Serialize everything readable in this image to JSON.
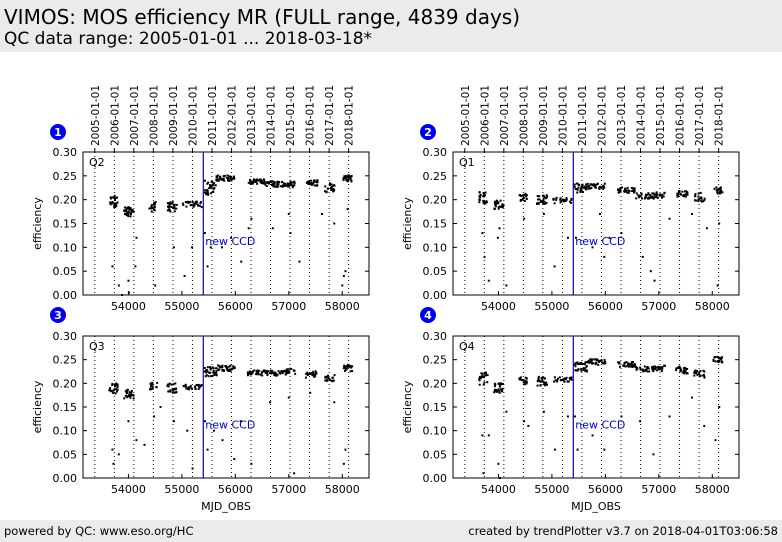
{
  "header": {
    "title": "VIMOS: MOS efficiency MR (FULL range, 4839 days)",
    "subtitle": "QC data range: 2005-01-01 ... 2018-03-18*"
  },
  "footer": {
    "left": "powered by QC: www.eso.org/HC",
    "right": "created by trendPlotter v3.7 on 2018-04-01T03:06:58"
  },
  "colors": {
    "points": "#000000",
    "event_line": "#0000cc",
    "event_text": "#0000cc",
    "badge": "#0000ee",
    "header_bg": "#ebebeb"
  },
  "chart_data": [
    {
      "type": "scatter",
      "panel_number": "1",
      "quadrant_label": "Q2",
      "xlabel": "",
      "ylabel": "efficiency",
      "xlim": [
        53150,
        58500
      ],
      "ylim": [
        0.0,
        0.3
      ],
      "x_ticks": [
        54000,
        55000,
        56000,
        57000,
        58000
      ],
      "y_ticks": [
        "0.00",
        "0.05",
        "0.10",
        "0.15",
        "0.20",
        "0.25",
        "0.30"
      ],
      "date_ticks": [
        {
          "label": "2005-01-01",
          "mjd": 53371
        },
        {
          "label": "2006-01-01",
          "mjd": 53736
        },
        {
          "label": "2007-01-01",
          "mjd": 54101
        },
        {
          "label": "2008-01-01",
          "mjd": 54466
        },
        {
          "label": "2009-01-01",
          "mjd": 54832
        },
        {
          "label": "2010-01-01",
          "mjd": 55197
        },
        {
          "label": "2011-01-01",
          "mjd": 55562
        },
        {
          "label": "2012-01-01",
          "mjd": 55927
        },
        {
          "label": "2013-01-01",
          "mjd": 56293
        },
        {
          "label": "2014-01-01",
          "mjd": 56658
        },
        {
          "label": "2015-01-01",
          "mjd": 57023
        },
        {
          "label": "2016-01-01",
          "mjd": 57388
        },
        {
          "label": "2017-01-01",
          "mjd": 57754
        },
        {
          "label": "2018-01-01",
          "mjd": 58119
        }
      ],
      "event": {
        "mjd": 55400,
        "label": "new CCD"
      },
      "segments": [
        {
          "x0": 53640,
          "x1": 53800,
          "y": 0.195,
          "spread": 0.013,
          "n": 26
        },
        {
          "x0": 53920,
          "x1": 54100,
          "y": 0.175,
          "spread": 0.01,
          "n": 30
        },
        {
          "x0": 54390,
          "x1": 54540,
          "y": 0.185,
          "spread": 0.01,
          "n": 16
        },
        {
          "x0": 54720,
          "x1": 54910,
          "y": 0.185,
          "spread": 0.01,
          "n": 26
        },
        {
          "x0": 55010,
          "x1": 55380,
          "y": 0.19,
          "spread": 0.006,
          "n": 28
        },
        {
          "x0": 55420,
          "x1": 55640,
          "y": 0.225,
          "spread": 0.015,
          "n": 32
        },
        {
          "x0": 55640,
          "x1": 55980,
          "y": 0.245,
          "spread": 0.006,
          "n": 40
        },
        {
          "x0": 56230,
          "x1": 56560,
          "y": 0.238,
          "spread": 0.005,
          "n": 38
        },
        {
          "x0": 56560,
          "x1": 56950,
          "y": 0.233,
          "spread": 0.006,
          "n": 40
        },
        {
          "x0": 56950,
          "x1": 57120,
          "y": 0.232,
          "spread": 0.006,
          "n": 20
        },
        {
          "x0": 57320,
          "x1": 57540,
          "y": 0.235,
          "spread": 0.006,
          "n": 26
        },
        {
          "x0": 57660,
          "x1": 57860,
          "y": 0.225,
          "spread": 0.01,
          "n": 22
        },
        {
          "x0": 58020,
          "x1": 58190,
          "y": 0.245,
          "spread": 0.007,
          "n": 24
        }
      ],
      "outliers": [
        [
          53700,
          0.06
        ],
        [
          53820,
          0.02
        ],
        [
          53880,
          0.0
        ],
        [
          54000,
          0.03
        ],
        [
          54010,
          0.005
        ],
        [
          54150,
          0.12
        ],
        [
          54130,
          0.06
        ],
        [
          54500,
          0.02
        ],
        [
          54850,
          0.1
        ],
        [
          55050,
          0.04
        ],
        [
          55190,
          0.1
        ],
        [
          55430,
          0.13
        ],
        [
          55480,
          0.06
        ],
        [
          55540,
          0.1
        ],
        [
          55750,
          0.1
        ],
        [
          55920,
          0.12
        ],
        [
          56110,
          0.07
        ],
        [
          56250,
          0.14
        ],
        [
          56300,
          0.16
        ],
        [
          56700,
          0.14
        ],
        [
          57000,
          0.17
        ],
        [
          57030,
          0.13
        ],
        [
          57200,
          0.07
        ],
        [
          57620,
          0.17
        ],
        [
          57850,
          0.15
        ],
        [
          58030,
          0.04
        ],
        [
          58060,
          0.05
        ],
        [
          58100,
          0.18
        ],
        [
          58000,
          0.02
        ]
      ]
    },
    {
      "type": "scatter",
      "panel_number": "2",
      "quadrant_label": "Q1",
      "xlabel": "",
      "ylabel": "efficiency",
      "xlim": [
        53150,
        58500
      ],
      "ylim": [
        0.0,
        0.3
      ],
      "x_ticks": [
        54000,
        55000,
        56000,
        57000,
        58000
      ],
      "y_ticks": [
        "0.00",
        "0.05",
        "0.10",
        "0.15",
        "0.20",
        "0.25",
        "0.30"
      ],
      "date_ticks": [
        {
          "label": "2005-01-01",
          "mjd": 53371
        },
        {
          "label": "2006-01-01",
          "mjd": 53736
        },
        {
          "label": "2007-01-01",
          "mjd": 54101
        },
        {
          "label": "2008-01-01",
          "mjd": 54466
        },
        {
          "label": "2009-01-01",
          "mjd": 54832
        },
        {
          "label": "2010-01-01",
          "mjd": 55197
        },
        {
          "label": "2011-01-01",
          "mjd": 55562
        },
        {
          "label": "2012-01-01",
          "mjd": 55927
        },
        {
          "label": "2013-01-01",
          "mjd": 56293
        },
        {
          "label": "2014-01-01",
          "mjd": 56658
        },
        {
          "label": "2015-01-01",
          "mjd": 57023
        },
        {
          "label": "2016-01-01",
          "mjd": 57388
        },
        {
          "label": "2017-01-01",
          "mjd": 57754
        },
        {
          "label": "2018-01-01",
          "mjd": 58119
        }
      ],
      "event": {
        "mjd": 55400,
        "label": "new CCD"
      },
      "segments": [
        {
          "x0": 53640,
          "x1": 53800,
          "y": 0.205,
          "spread": 0.013,
          "n": 24
        },
        {
          "x0": 53920,
          "x1": 54100,
          "y": 0.19,
          "spread": 0.01,
          "n": 26
        },
        {
          "x0": 54390,
          "x1": 54540,
          "y": 0.205,
          "spread": 0.008,
          "n": 16
        },
        {
          "x0": 54720,
          "x1": 54910,
          "y": 0.2,
          "spread": 0.01,
          "n": 24
        },
        {
          "x0": 55010,
          "x1": 55380,
          "y": 0.198,
          "spread": 0.006,
          "n": 26
        },
        {
          "x0": 55420,
          "x1": 55660,
          "y": 0.225,
          "spread": 0.01,
          "n": 30
        },
        {
          "x0": 55660,
          "x1": 56000,
          "y": 0.228,
          "spread": 0.006,
          "n": 34
        },
        {
          "x0": 56230,
          "x1": 56560,
          "y": 0.22,
          "spread": 0.006,
          "n": 34
        },
        {
          "x0": 56560,
          "x1": 56950,
          "y": 0.208,
          "spread": 0.006,
          "n": 36
        },
        {
          "x0": 56950,
          "x1": 57120,
          "y": 0.21,
          "spread": 0.006,
          "n": 18
        },
        {
          "x0": 57320,
          "x1": 57540,
          "y": 0.212,
          "spread": 0.006,
          "n": 24
        },
        {
          "x0": 57660,
          "x1": 57860,
          "y": 0.205,
          "spread": 0.01,
          "n": 20
        },
        {
          "x0": 58020,
          "x1": 58190,
          "y": 0.22,
          "spread": 0.007,
          "n": 22
        }
      ],
      "outliers": [
        [
          53700,
          0.13
        ],
        [
          53740,
          0.08
        ],
        [
          53820,
          0.03
        ],
        [
          53990,
          0.12
        ],
        [
          54020,
          0.14
        ],
        [
          54150,
          0.02
        ],
        [
          54480,
          0.16
        ],
        [
          54850,
          0.17
        ],
        [
          55050,
          0.06
        ],
        [
          55300,
          0.12
        ],
        [
          55450,
          0.12
        ],
        [
          55760,
          0.1
        ],
        [
          55980,
          0.08
        ],
        [
          56080,
          0.12
        ],
        [
          56300,
          0.13
        ],
        [
          56700,
          0.08
        ],
        [
          56850,
          0.05
        ],
        [
          56920,
          0.03
        ],
        [
          57200,
          0.16
        ],
        [
          57620,
          0.17
        ],
        [
          57900,
          0.14
        ],
        [
          58100,
          0.02
        ],
        [
          58130,
          0.15
        ],
        [
          55900,
          0.17
        ]
      ]
    },
    {
      "type": "scatter",
      "panel_number": "3",
      "quadrant_label": "Q3",
      "xlabel": "MJD_OBS",
      "ylabel": "efficiency",
      "xlim": [
        53150,
        58500
      ],
      "ylim": [
        0.0,
        0.3
      ],
      "x_ticks": [
        54000,
        55000,
        56000,
        57000,
        58000
      ],
      "y_ticks": [
        "0.00",
        "0.05",
        "0.10",
        "0.15",
        "0.20",
        "0.25",
        "0.30"
      ],
      "date_ticks": [
        {
          "label": "2005-01-01",
          "mjd": 53371
        },
        {
          "label": "2006-01-01",
          "mjd": 53736
        },
        {
          "label": "2007-01-01",
          "mjd": 54101
        },
        {
          "label": "2008-01-01",
          "mjd": 54466
        },
        {
          "label": "2009-01-01",
          "mjd": 54832
        },
        {
          "label": "2010-01-01",
          "mjd": 55197
        },
        {
          "label": "2011-01-01",
          "mjd": 55562
        },
        {
          "label": "2012-01-01",
          "mjd": 55927
        },
        {
          "label": "2013-01-01",
          "mjd": 56293
        },
        {
          "label": "2014-01-01",
          "mjd": 56658
        },
        {
          "label": "2015-01-01",
          "mjd": 57023
        },
        {
          "label": "2016-01-01",
          "mjd": 57388
        },
        {
          "label": "2017-01-01",
          "mjd": 57754
        },
        {
          "label": "2018-01-01",
          "mjd": 58119
        }
      ],
      "event": {
        "mjd": 55400,
        "label": "new CCD"
      },
      "segments": [
        {
          "x0": 53640,
          "x1": 53800,
          "y": 0.19,
          "spread": 0.012,
          "n": 24
        },
        {
          "x0": 53920,
          "x1": 54100,
          "y": 0.178,
          "spread": 0.01,
          "n": 28
        },
        {
          "x0": 54390,
          "x1": 54540,
          "y": 0.195,
          "spread": 0.008,
          "n": 16
        },
        {
          "x0": 54720,
          "x1": 54910,
          "y": 0.19,
          "spread": 0.01,
          "n": 24
        },
        {
          "x0": 55010,
          "x1": 55380,
          "y": 0.192,
          "spread": 0.005,
          "n": 26
        },
        {
          "x0": 55420,
          "x1": 55660,
          "y": 0.225,
          "spread": 0.01,
          "n": 30
        },
        {
          "x0": 55660,
          "x1": 56000,
          "y": 0.232,
          "spread": 0.006,
          "n": 36
        },
        {
          "x0": 56230,
          "x1": 56560,
          "y": 0.222,
          "spread": 0.006,
          "n": 34
        },
        {
          "x0": 56560,
          "x1": 56950,
          "y": 0.222,
          "spread": 0.006,
          "n": 36
        },
        {
          "x0": 56950,
          "x1": 57120,
          "y": 0.225,
          "spread": 0.006,
          "n": 18
        },
        {
          "x0": 57320,
          "x1": 57540,
          "y": 0.218,
          "spread": 0.008,
          "n": 24
        },
        {
          "x0": 57660,
          "x1": 57860,
          "y": 0.212,
          "spread": 0.008,
          "n": 20
        },
        {
          "x0": 58020,
          "x1": 58190,
          "y": 0.232,
          "spread": 0.007,
          "n": 22
        }
      ],
      "outliers": [
        [
          53700,
          0.06
        ],
        [
          53720,
          0.03
        ],
        [
          53820,
          0.05
        ],
        [
          54000,
          0.12
        ],
        [
          54150,
          0.08
        ],
        [
          54300,
          0.07
        ],
        [
          54480,
          0.13
        ],
        [
          54600,
          0.15
        ],
        [
          54850,
          0.12
        ],
        [
          55100,
          0.1
        ],
        [
          55200,
          0.02
        ],
        [
          55430,
          0.12
        ],
        [
          55480,
          0.06
        ],
        [
          55600,
          0.1
        ],
        [
          55760,
          0.08
        ],
        [
          55980,
          0.04
        ],
        [
          56100,
          0.12
        ],
        [
          56300,
          0.03
        ],
        [
          56650,
          0.16
        ],
        [
          57000,
          0.17
        ],
        [
          57100,
          0.01
        ],
        [
          57400,
          0.18
        ],
        [
          57850,
          0.16
        ],
        [
          58030,
          0.03
        ],
        [
          58060,
          0.06
        ]
      ]
    },
    {
      "type": "scatter",
      "panel_number": "4",
      "quadrant_label": "Q4",
      "xlabel": "MJD_OBS",
      "ylabel": "efficiency",
      "xlim": [
        53150,
        58500
      ],
      "ylim": [
        0.0,
        0.3
      ],
      "x_ticks": [
        54000,
        55000,
        56000,
        57000,
        58000
      ],
      "y_ticks": [
        "0.00",
        "0.05",
        "0.10",
        "0.15",
        "0.20",
        "0.25",
        "0.30"
      ],
      "date_ticks": [
        {
          "label": "2005-01-01",
          "mjd": 53371
        },
        {
          "label": "2006-01-01",
          "mjd": 53736
        },
        {
          "label": "2007-01-01",
          "mjd": 54101
        },
        {
          "label": "2008-01-01",
          "mjd": 54466
        },
        {
          "label": "2009-01-01",
          "mjd": 54832
        },
        {
          "label": "2010-01-01",
          "mjd": 55197
        },
        {
          "label": "2011-01-01",
          "mjd": 55562
        },
        {
          "label": "2012-01-01",
          "mjd": 55927
        },
        {
          "label": "2013-01-01",
          "mjd": 56293
        },
        {
          "label": "2014-01-01",
          "mjd": 56658
        },
        {
          "label": "2015-01-01",
          "mjd": 57023
        },
        {
          "label": "2016-01-01",
          "mjd": 57388
        },
        {
          "label": "2017-01-01",
          "mjd": 57754
        },
        {
          "label": "2018-01-01",
          "mjd": 58119
        }
      ],
      "event": {
        "mjd": 55400,
        "label": "new CCD"
      },
      "segments": [
        {
          "x0": 53640,
          "x1": 53800,
          "y": 0.21,
          "spread": 0.013,
          "n": 24
        },
        {
          "x0": 53920,
          "x1": 54100,
          "y": 0.19,
          "spread": 0.01,
          "n": 28
        },
        {
          "x0": 54390,
          "x1": 54540,
          "y": 0.205,
          "spread": 0.008,
          "n": 16
        },
        {
          "x0": 54720,
          "x1": 54910,
          "y": 0.205,
          "spread": 0.01,
          "n": 24
        },
        {
          "x0": 55010,
          "x1": 55380,
          "y": 0.208,
          "spread": 0.005,
          "n": 26
        },
        {
          "x0": 55420,
          "x1": 55660,
          "y": 0.235,
          "spread": 0.01,
          "n": 30
        },
        {
          "x0": 55660,
          "x1": 56000,
          "y": 0.245,
          "spread": 0.006,
          "n": 36
        },
        {
          "x0": 56230,
          "x1": 56560,
          "y": 0.24,
          "spread": 0.006,
          "n": 34
        },
        {
          "x0": 56560,
          "x1": 56950,
          "y": 0.23,
          "spread": 0.006,
          "n": 36
        },
        {
          "x0": 56950,
          "x1": 57120,
          "y": 0.232,
          "spread": 0.006,
          "n": 18
        },
        {
          "x0": 57320,
          "x1": 57540,
          "y": 0.228,
          "spread": 0.008,
          "n": 24
        },
        {
          "x0": 57660,
          "x1": 57860,
          "y": 0.22,
          "spread": 0.008,
          "n": 20
        },
        {
          "x0": 58020,
          "x1": 58190,
          "y": 0.25,
          "spread": 0.006,
          "n": 22
        }
      ],
      "outliers": [
        [
          53700,
          0.09
        ],
        [
          53720,
          0.01
        ],
        [
          53820,
          0.09
        ],
        [
          54000,
          0.03
        ],
        [
          54030,
          0.0
        ],
        [
          54150,
          0.14
        ],
        [
          54480,
          0.12
        ],
        [
          54560,
          0.11
        ],
        [
          54850,
          0.14
        ],
        [
          55060,
          0.06
        ],
        [
          55300,
          0.13
        ],
        [
          55430,
          0.13
        ],
        [
          55480,
          0.06
        ],
        [
          55760,
          0.09
        ],
        [
          55980,
          0.06
        ],
        [
          56300,
          0.13
        ],
        [
          56650,
          0.12
        ],
        [
          56900,
          0.05
        ],
        [
          57200,
          0.13
        ],
        [
          57620,
          0.17
        ],
        [
          57850,
          0.11
        ],
        [
          58060,
          0.08
        ],
        [
          58130,
          0.15
        ]
      ]
    }
  ]
}
